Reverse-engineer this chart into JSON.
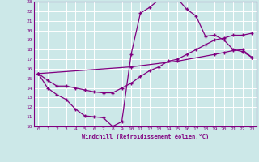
{
  "bg_color": "#cce8e8",
  "line_color": "#800080",
  "grid_color": "#ffffff",
  "xlabel": "Windchill (Refroidissement éolien,°C)",
  "xlim": [
    -0.5,
    23.5
  ],
  "ylim": [
    10,
    23
  ],
  "xticks": [
    0,
    1,
    2,
    3,
    4,
    5,
    6,
    7,
    8,
    9,
    10,
    11,
    12,
    13,
    14,
    15,
    16,
    17,
    18,
    19,
    20,
    21,
    22,
    23
  ],
  "yticks": [
    10,
    11,
    12,
    13,
    14,
    15,
    16,
    17,
    18,
    19,
    20,
    21,
    22,
    23
  ],
  "line1_x": [
    0,
    1,
    2,
    3,
    4,
    5,
    6,
    7,
    8,
    9,
    10,
    11,
    12,
    13,
    14,
    15,
    16,
    17,
    18,
    19,
    20,
    21,
    22,
    23
  ],
  "line1_y": [
    15.5,
    14.0,
    13.3,
    12.8,
    11.8,
    11.1,
    11.0,
    10.9,
    10.0,
    10.5,
    17.5,
    21.8,
    22.4,
    23.2,
    23.3,
    23.3,
    22.2,
    21.5,
    19.4,
    19.5,
    19.0,
    18.0,
    17.8,
    17.2
  ],
  "line2_x": [
    0,
    1,
    2,
    3,
    4,
    5,
    6,
    7,
    8,
    9,
    10,
    11,
    12,
    13,
    14,
    15,
    16,
    17,
    18,
    19,
    20,
    21,
    22,
    23
  ],
  "line2_y": [
    15.5,
    14.8,
    14.2,
    14.2,
    14.0,
    13.8,
    13.6,
    13.5,
    13.5,
    14.0,
    14.5,
    15.2,
    15.8,
    16.2,
    16.8,
    17.0,
    17.5,
    18.0,
    18.5,
    19.0,
    19.2,
    19.5,
    19.5,
    19.7
  ],
  "line3_x": [
    0,
    10,
    15,
    19,
    20,
    21,
    22,
    23
  ],
  "line3_y": [
    15.5,
    16.2,
    16.8,
    17.5,
    17.7,
    17.9,
    18.0,
    17.2
  ],
  "marker": "+"
}
